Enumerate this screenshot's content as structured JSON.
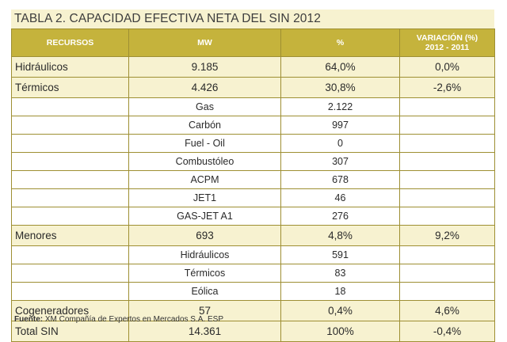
{
  "title": "TABLA 2. CAPACIDAD EFECTIVA NETA DEL SIN 2012",
  "columns": [
    "RECURSOS",
    "MW",
    "%",
    "VARIACIÓN (%)",
    "2012 - 2011"
  ],
  "rows": [
    {
      "resource": "Hidráulicos",
      "mw": "9.185",
      "pct": "64,0%",
      "variation": "0,0%"
    },
    {
      "resource": "Térmicos",
      "mw": "4.426",
      "pct": "30,8%",
      "variation": "-2,6%"
    },
    {
      "sub": "Gas",
      "value": "2.122"
    },
    {
      "sub": "Carbón",
      "value": "997"
    },
    {
      "sub": "Fuel - Oil",
      "value": "0"
    },
    {
      "sub": "Combustóleo",
      "value": "307"
    },
    {
      "sub": "ACPM",
      "value": "678"
    },
    {
      "sub": "JET1",
      "value": "46"
    },
    {
      "sub": "GAS-JET A1",
      "value": "276"
    },
    {
      "resource": "Menores",
      "mw": "693",
      "pct": "4,8%",
      "variation": "9,2%"
    },
    {
      "sub": "Hidráulicos",
      "value": "591"
    },
    {
      "sub": "Térmicos",
      "value": "83"
    },
    {
      "sub": "Eólica",
      "value": "18"
    },
    {
      "resource": "Cogeneradores",
      "mw": "57",
      "pct": "0,4%",
      "variation": "4,6%"
    },
    {
      "resource": "Total SIN",
      "mw": "14.361",
      "pct": "100%",
      "variation": "-0,4%"
    }
  ],
  "footer": {
    "label": "Fuente:",
    "text": " XM Compañía de Expertos en Mercados S.A. ESP"
  },
  "colors": {
    "header_bg": "#c5b33c",
    "main_row_bg": "#f7f2d0",
    "border": "#9e8f33"
  }
}
